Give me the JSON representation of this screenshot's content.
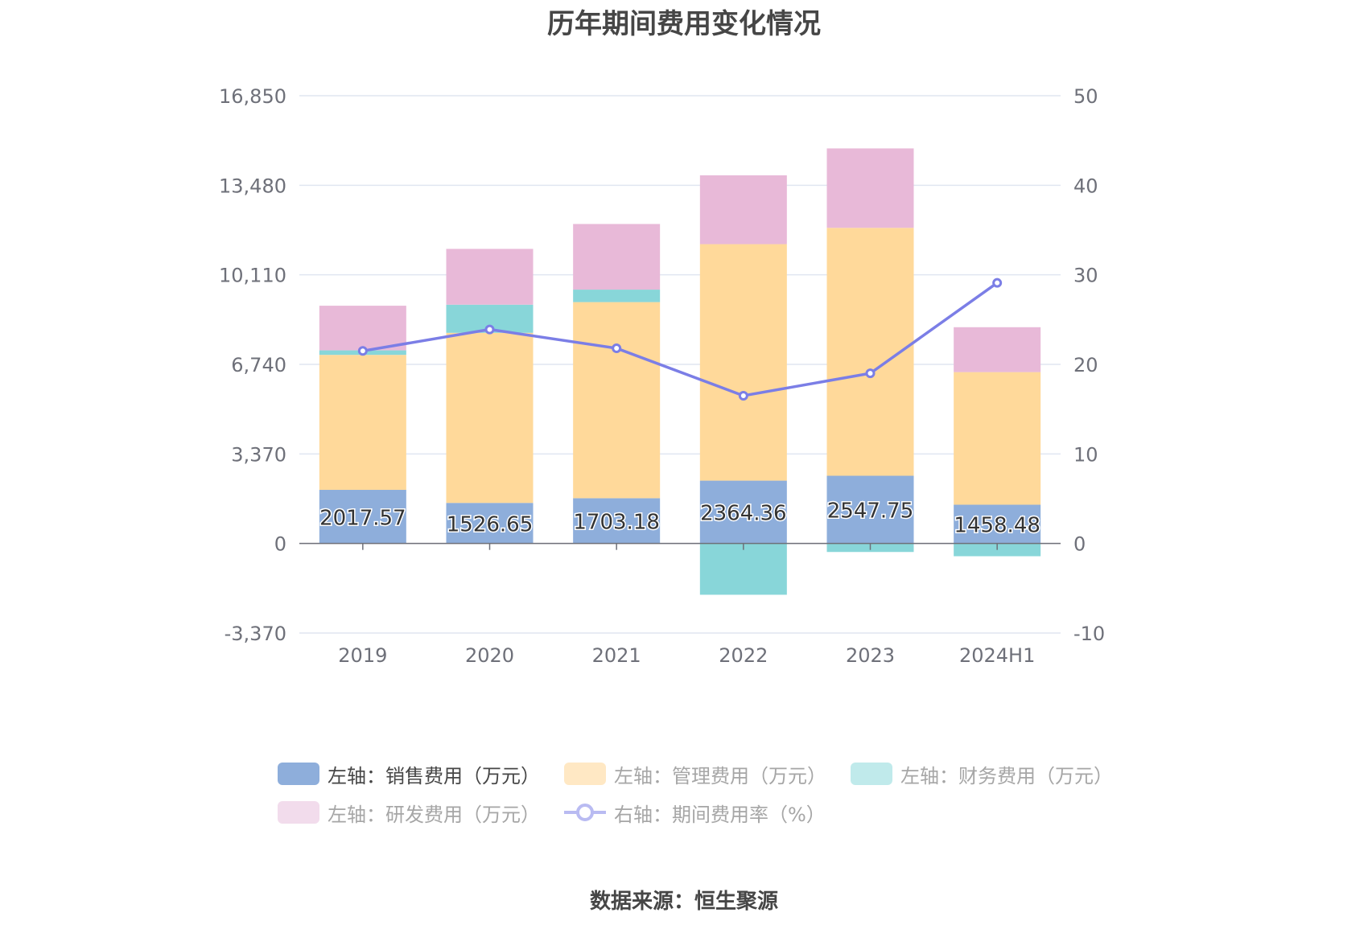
{
  "title": "历年期间费用变化情况",
  "source": "数据来源：恒生聚源",
  "chart_data": {
    "type": "bar",
    "stacked": true,
    "categories": [
      "2019",
      "2020",
      "2021",
      "2022",
      "2023",
      "2024H1"
    ],
    "series": [
      {
        "name": "左轴：销售费用（万元）",
        "axis": "left",
        "color": "#8eaedb",
        "values": [
          2017.57,
          1526.65,
          1703.18,
          2364.36,
          2547.75,
          1458.48
        ],
        "show_labels": true
      },
      {
        "name": "左轴：管理费用（万元）",
        "axis": "left",
        "color": "#ffd99a",
        "values": [
          5080,
          6400,
          7380,
          8900,
          9330,
          4990
        ]
      },
      {
        "name": "左轴：财务费用（万元）",
        "axis": "left",
        "color": "#88d6d9",
        "values": [
          170,
          1060,
          470,
          -1930,
          -320,
          -480
        ]
      },
      {
        "name": "左轴：研发费用（万元）",
        "axis": "left",
        "color": "#e8b9d8",
        "values": [
          1680,
          2100,
          2470,
          2590,
          2990,
          1690
        ]
      },
      {
        "name": "右轴：期间费用率（%）",
        "axis": "right",
        "type": "line",
        "color": "#7b7ee6",
        "values": [
          21.5,
          23.9,
          21.8,
          16.5,
          19.0,
          29.1
        ]
      }
    ],
    "yleft": {
      "min": -3370,
      "max": 16850,
      "ticks": [
        "16,850",
        "13,480",
        "10,110",
        "6,740",
        "3,370",
        "0",
        "-3,370"
      ]
    },
    "yright": {
      "min": -10,
      "max": 50,
      "ticks": [
        "50",
        "40",
        "30",
        "20",
        "10",
        "0",
        "-10"
      ]
    },
    "legend_position": "bottom"
  }
}
